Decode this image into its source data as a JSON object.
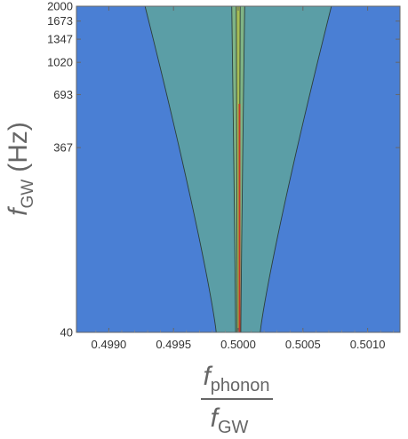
{
  "chart_data": {
    "type": "contour",
    "title": "",
    "xlabel": {
      "numerator": {
        "symbol": "f",
        "subscript": "phonon"
      },
      "denominator": {
        "symbol": "f",
        "subscript": "GW"
      }
    },
    "ylabel": {
      "symbol": "f",
      "subscript": "GW",
      "unit": "(Hz)"
    },
    "xlim": [
      0.49875,
      0.50125
    ],
    "ylim": [
      40,
      2000
    ],
    "y_scale": "log",
    "x_ticks": [
      "0.4990",
      "0.4995",
      "0.5000",
      "0.5005",
      "0.5010"
    ],
    "x_tick_values": [
      0.499,
      0.4995,
      0.5,
      0.5005,
      0.501
    ],
    "y_ticks": [
      "40",
      "367",
      "693",
      "1020",
      "1347",
      "1673",
      "2000"
    ],
    "y_tick_values": [
      40,
      367,
      693,
      1020,
      1347,
      1673,
      2000
    ],
    "grid": false,
    "legend": "none",
    "center": 0.5,
    "bands": [
      {
        "level": 0,
        "color": "#4a7fd4",
        "half_width": {
          "f_at_40": 0.00097,
          "f_at_2000": 0.00117
        }
      },
      {
        "level": 1,
        "color": "#5b9ea6",
        "half_width": {
          "f_at_40": 0.00017,
          "f_at_2000": 0.00072
        }
      },
      {
        "level": 2,
        "color": "#7fb486",
        "half_width": {
          "f_at_40": 2e-05,
          "f_at_2000": 5e-05
        }
      },
      {
        "level": 3,
        "color": "#a7bd55",
        "half_width": {
          "f_at_40": 8e-06,
          "f_at_2000": 1.5e-05
        }
      }
    ],
    "ridge": {
      "color": "#c0392b",
      "x": 0.50001,
      "y_from": 40,
      "y_to": 620
    },
    "contour_line_color": "#2c3e3a"
  }
}
